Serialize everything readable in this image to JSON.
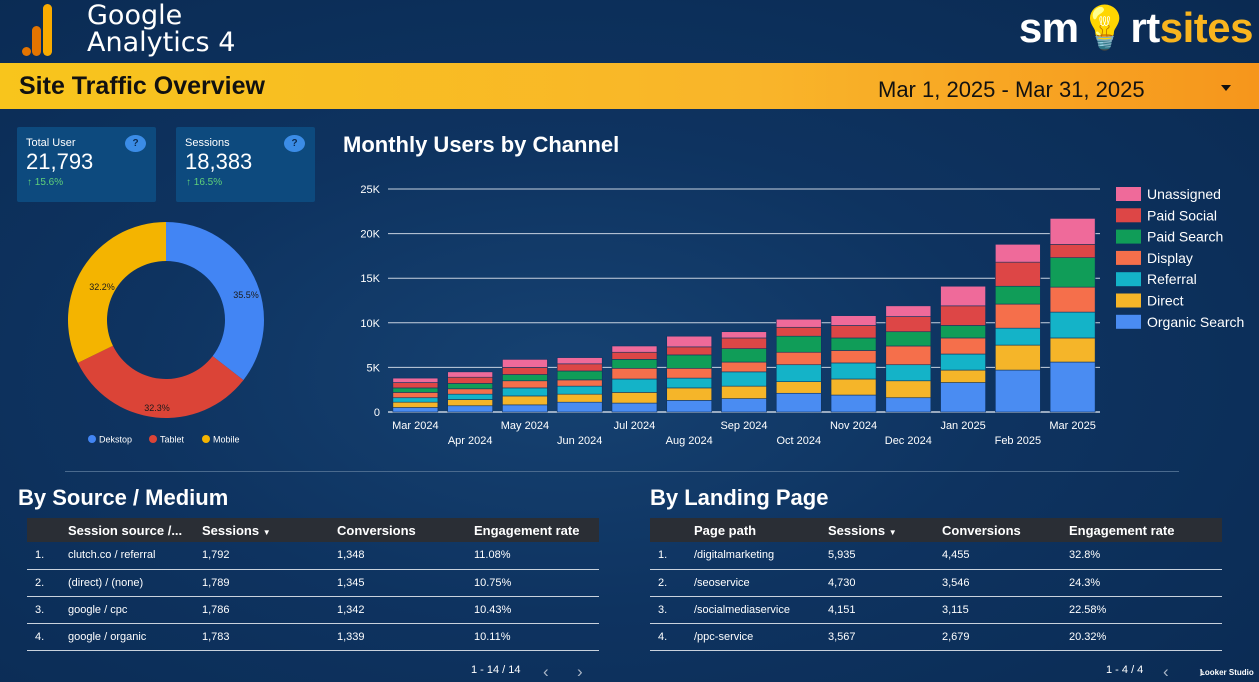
{
  "header": {
    "ga_line1": "Google",
    "ga_line2": "Analytics",
    "ga_version": "4",
    "brand_part1": "sm",
    "brand_part2": "rt",
    "brand_part3": "sites",
    "banner_title": "Site Traffic Overview",
    "date_range": "Mar 1, 2025 - Mar 31, 2025"
  },
  "kpis": [
    {
      "label": "Total User",
      "value": "21,793",
      "change": "15.6%",
      "help": "?"
    },
    {
      "label": "Sessions",
      "value": "18,383",
      "change": "16.5%",
      "help": "?"
    }
  ],
  "donut": {
    "slices": [
      {
        "label": "Dekstop",
        "value": 35.5,
        "text": "35.5%",
        "color": "#4285f4"
      },
      {
        "label": "Tablet",
        "value": 32.3,
        "text": "32.3%",
        "color": "#db4437"
      },
      {
        "label": "Mobile",
        "value": 32.2,
        "text": "32.2%",
        "color": "#f4b400"
      }
    ]
  },
  "chart_data": {
    "type": "bar",
    "stacked": true,
    "title": "Monthly Users by Channel",
    "categories": [
      "Mar 2024",
      "Apr 2024",
      "May 2024",
      "Jun 2024",
      "Jul 2024",
      "Aug 2024",
      "Sep 2024",
      "Oct 2024",
      "Nov 2024",
      "Dec 2024",
      "Jan 2025",
      "Feb 2025",
      "Mar 2025"
    ],
    "ylim": [
      0,
      25000
    ],
    "yticks": [
      0,
      5000,
      10000,
      15000,
      20000,
      25000
    ],
    "ytick_labels": [
      "0",
      "5K",
      "10K",
      "15K",
      "20K",
      "25K"
    ],
    "series": [
      {
        "name": "Organic Search",
        "color": "#4a8cf2",
        "values": [
          500,
          700,
          800,
          1100,
          1000,
          1300,
          1500,
          2100,
          1900,
          1600,
          3300,
          4700,
          5600
        ]
      },
      {
        "name": "Direct",
        "color": "#f5b529",
        "values": [
          600,
          700,
          1000,
          900,
          1200,
          1400,
          1400,
          1300,
          1800,
          1900,
          1400,
          2800,
          2700
        ]
      },
      {
        "name": "Referral",
        "color": "#14b3c8",
        "values": [
          500,
          600,
          900,
          900,
          1500,
          1100,
          1600,
          1900,
          1800,
          1800,
          1800,
          1900,
          2900
        ]
      },
      {
        "name": "Display",
        "color": "#f56f4b",
        "values": [
          600,
          600,
          800,
          700,
          1200,
          1100,
          1100,
          1400,
          1400,
          2100,
          1800,
          2700,
          2800
        ]
      },
      {
        "name": "Paid Search",
        "color": "#109d58",
        "values": [
          500,
          600,
          700,
          1000,
          1000,
          1500,
          1500,
          1800,
          1400,
          1600,
          1400,
          2000,
          3300
        ]
      },
      {
        "name": "Paid Social",
        "color": "#dd4646",
        "values": [
          600,
          700,
          800,
          800,
          800,
          900,
          1200,
          1000,
          1400,
          1700,
          2200,
          2700,
          1500
        ]
      },
      {
        "name": "Unassigned",
        "color": "#ef6a9a",
        "values": [
          500,
          600,
          900,
          700,
          700,
          1200,
          700,
          900,
          1100,
          1200,
          2200,
          2000,
          2900
        ]
      }
    ]
  },
  "source_table": {
    "title": "By Source / Medium",
    "headers": [
      "Session source /...",
      "Sessions",
      "Conversions",
      "Engagement rate"
    ],
    "rows": [
      [
        "1.",
        "clutch.co / referral",
        "1,792",
        "1,348",
        "11.08%"
      ],
      [
        "2.",
        "(direct) / (none)",
        "1,789",
        "1,345",
        "10.75%"
      ],
      [
        "3.",
        "google / cpc",
        "1,786",
        "1,342",
        "10.43%"
      ],
      [
        "4.",
        "google / organic",
        "1,783",
        "1,339",
        "10.11%"
      ]
    ],
    "pager": "1 - 14 / 14"
  },
  "landing_table": {
    "title": "By Landing Page",
    "headers": [
      "Page path",
      "Sessions",
      "Conversions",
      "Engagement rate"
    ],
    "rows": [
      [
        "1.",
        "/digitalmarketing",
        "5,935",
        "4,455",
        "32.8%"
      ],
      [
        "2.",
        "/seoservice",
        "4,730",
        "3,546",
        "24.3%"
      ],
      [
        "3.",
        "/socialmediaservice",
        "4,151",
        "3,115",
        "22.58%"
      ],
      [
        "4.",
        "/ppc-service",
        "3,567",
        "2,679",
        "20.32%"
      ]
    ],
    "pager": "1 - 4 / 4"
  },
  "footer": {
    "looker": "Looker Studio"
  }
}
